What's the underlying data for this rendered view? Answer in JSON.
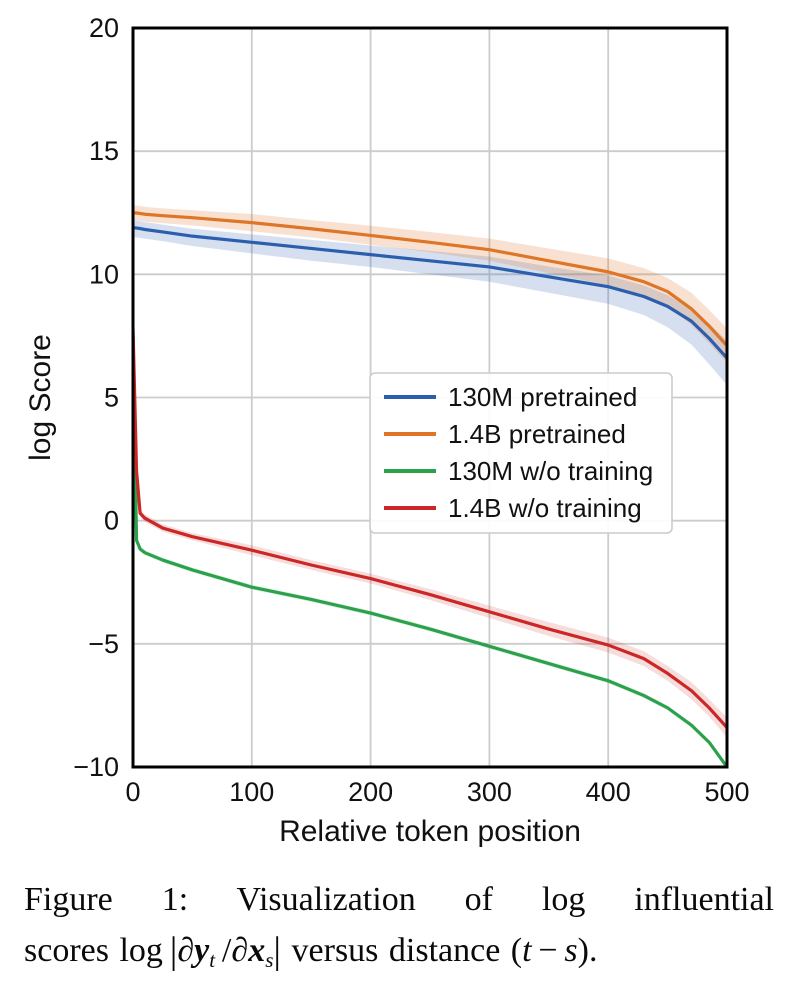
{
  "figure": {
    "caption_line1": "Figure 1: Visualization of log influential",
    "caption_line2_segments": [
      {
        "text": "scores log ",
        "style": "plain"
      },
      {
        "text": "|",
        "style": "delim"
      },
      {
        "text": "∂",
        "style": "italic"
      },
      {
        "text": "y",
        "style": "boldItalic"
      },
      {
        "text": "t",
        "style": "subscript"
      },
      {
        "text": " /",
        "style": "plain"
      },
      {
        "text": "∂",
        "style": "italic"
      },
      {
        "text": "x",
        "style": "boldItalic"
      },
      {
        "text": "s",
        "style": "subscript"
      },
      {
        "text": "|",
        "style": "delim"
      },
      {
        "text": " versus distance (",
        "style": "plain"
      },
      {
        "text": "t",
        "style": "italic"
      },
      {
        "text": " − ",
        "style": "plain"
      },
      {
        "text": "s",
        "style": "italic"
      },
      {
        "text": ").",
        "style": "plain"
      }
    ]
  },
  "chart_data": {
    "type": "line",
    "title": "",
    "xlabel": "Relative token position",
    "ylabel": "log Score",
    "xlim": [
      0,
      500
    ],
    "ylim": [
      -10,
      20
    ],
    "grid": true,
    "grid_color": "#cccccc",
    "spine_color": "#000000",
    "legend_position": "inside-center-right",
    "xticks": {
      "values": [
        0,
        100,
        200,
        300,
        400,
        500
      ],
      "labels": [
        "0",
        "100",
        "200",
        "300",
        "400",
        "500"
      ]
    },
    "yticks": {
      "values": [
        20,
        15,
        10,
        5,
        0,
        -5,
        -10
      ],
      "labels": [
        "20",
        "15",
        "10",
        "5",
        "0",
        "−5",
        "−10"
      ]
    },
    "x": [
      0,
      3,
      6,
      10,
      25,
      50,
      100,
      150,
      200,
      250,
      300,
      350,
      400,
      430,
      450,
      470,
      485,
      500
    ],
    "series": [
      {
        "id": "130m-pretrained",
        "name": "130M pretrained",
        "color": "#2b5fae",
        "band_color": "rgba(43,95,174,0.20)",
        "values": [
          11.9,
          11.88,
          11.86,
          11.82,
          11.72,
          11.55,
          11.3,
          11.05,
          10.8,
          10.55,
          10.3,
          9.9,
          9.5,
          9.1,
          8.7,
          8.1,
          7.4,
          6.6
        ],
        "band_upper": [
          12.2,
          12.18,
          12.16,
          12.12,
          12.02,
          11.85,
          11.62,
          11.4,
          11.17,
          10.95,
          10.72,
          10.32,
          9.95,
          9.55,
          9.15,
          8.6,
          8.0,
          7.3
        ],
        "band_lower": [
          11.5,
          11.5,
          11.48,
          11.45,
          11.35,
          11.15,
          10.85,
          10.55,
          10.3,
          10.0,
          9.7,
          9.25,
          8.8,
          8.35,
          7.85,
          7.15,
          6.35,
          5.5
        ]
      },
      {
        "id": "1_4b-pretrained",
        "name": "1.4B pretrained",
        "color": "#de7527",
        "band_color": "rgba(222,117,39,0.22)",
        "values": [
          12.5,
          12.49,
          12.47,
          12.44,
          12.38,
          12.3,
          12.1,
          11.85,
          11.58,
          11.3,
          11.0,
          10.55,
          10.1,
          9.7,
          9.3,
          8.6,
          7.9,
          7.1
        ],
        "band_upper": [
          12.8,
          12.79,
          12.77,
          12.74,
          12.68,
          12.6,
          12.45,
          12.2,
          11.97,
          11.72,
          11.45,
          11.05,
          10.65,
          10.25,
          9.85,
          9.25,
          8.55,
          7.8
        ],
        "band_lower": [
          12.2,
          12.19,
          12.17,
          12.14,
          12.08,
          11.98,
          11.75,
          11.5,
          11.2,
          10.9,
          10.55,
          10.05,
          9.55,
          9.15,
          8.7,
          7.95,
          7.2,
          6.4
        ]
      },
      {
        "id": "130m-wo-training",
        "name": "130M w/o training",
        "color": "#2aa14a",
        "band_color": "rgba(42,161,74,0.14)",
        "values": [
          7.5,
          -0.8,
          -1.15,
          -1.3,
          -1.6,
          -2.0,
          -2.7,
          -3.2,
          -3.75,
          -4.4,
          -5.1,
          -5.8,
          -6.5,
          -7.1,
          -7.6,
          -8.3,
          -9.0,
          -10.0
        ],
        "band_upper": [
          7.55,
          -0.72,
          -1.05,
          -1.2,
          -1.5,
          -1.9,
          -2.6,
          -3.1,
          -3.65,
          -4.3,
          -5.0,
          -5.7,
          -6.4,
          -7.0,
          -7.5,
          -8.2,
          -8.9,
          -9.9
        ],
        "band_lower": [
          7.45,
          -0.88,
          -1.25,
          -1.4,
          -1.7,
          -2.1,
          -2.8,
          -3.3,
          -3.85,
          -4.5,
          -5.2,
          -5.9,
          -6.6,
          -7.2,
          -7.7,
          -8.4,
          -9.1,
          -10.0
        ]
      },
      {
        "id": "1_4b-wo-training",
        "name": "1.4B w/o training",
        "color": "#cb2727",
        "band_color": "rgba(203,39,39,0.16)",
        "values": [
          7.8,
          2.0,
          0.3,
          0.1,
          -0.3,
          -0.65,
          -1.2,
          -1.8,
          -2.35,
          -3.0,
          -3.7,
          -4.4,
          -5.05,
          -5.6,
          -6.2,
          -6.9,
          -7.6,
          -8.4
        ],
        "band_upper": [
          7.85,
          2.1,
          0.45,
          0.25,
          -0.15,
          -0.5,
          -1.0,
          -1.6,
          -2.15,
          -2.78,
          -3.45,
          -4.12,
          -4.75,
          -5.3,
          -5.9,
          -6.55,
          -7.25,
          -8.0
        ],
        "band_lower": [
          7.75,
          1.9,
          0.15,
          -0.05,
          -0.45,
          -0.8,
          -1.4,
          -2.0,
          -2.55,
          -3.22,
          -3.95,
          -4.68,
          -5.35,
          -5.9,
          -6.5,
          -7.25,
          -7.95,
          -8.8
        ]
      }
    ]
  }
}
